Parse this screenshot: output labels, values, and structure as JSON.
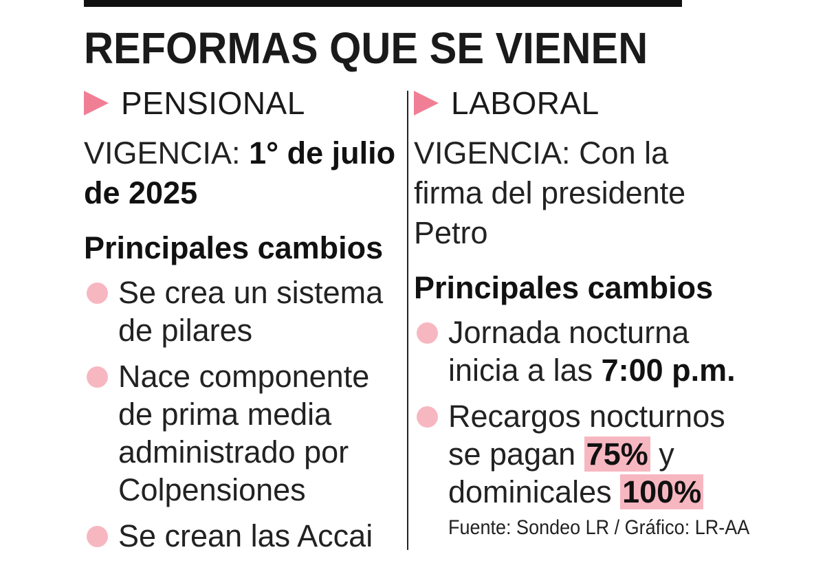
{
  "title": "REFORMAS QUE SE VIENEN",
  "left": {
    "heading": "PENSIONAL",
    "vigencia_label": "VIGENCIA: ",
    "vigencia_value": "1° de julio de 2025",
    "subheading": "Principales cambios",
    "items": [
      "Se crea un sistema de pilares",
      "Nace componente de prima media administrado por Colpensiones",
      "Se crean las Accai"
    ]
  },
  "right": {
    "heading": "LABORAL",
    "vigencia_label": "VIGENCIA: ",
    "vigencia_value": "Con la firma del presidente Petro",
    "subheading": "Principales cambios",
    "item1_text": "Jornada nocturna inicia a las ",
    "item1_bold": "7:00 p.m.",
    "item2_text1": "Recargos nocturnos se pagan ",
    "item2_hl1": "75%",
    "item2_text2": " y dominicales ",
    "item2_hl2": "100%"
  },
  "source": "Fuente: Sondeo LR / Gráfico: LR-AA",
  "colors": {
    "accent": "#f07f95",
    "highlight": "#f7b7c1",
    "text": "#1a1a1a"
  },
  "icons": {
    "section_marker": "triangle-right-icon",
    "bullet": "circle-bullet-icon"
  }
}
